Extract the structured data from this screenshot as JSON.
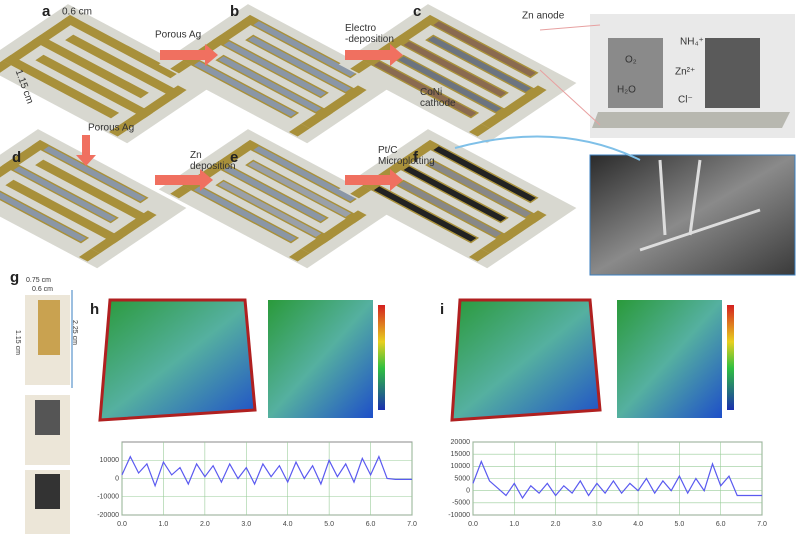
{
  "panels": {
    "a": "a",
    "b": "b",
    "c": "c",
    "d": "d",
    "e": "e",
    "f": "f",
    "g": "g",
    "h": "h",
    "i": "i"
  },
  "labels": {
    "width_a": "0.6 cm",
    "length_a": "1.15 cm",
    "step_ab": "Porous Ag",
    "step_bc": "Electro\n-deposition",
    "zn_anode": "Zn anode",
    "coni_cathode": "CoNi\ncathode",
    "nh4": "NH₄⁺",
    "o2": "O₂",
    "zn2": "Zn²⁺",
    "h2o": "H₂O",
    "cl": "Cl⁻",
    "step_ad": "Porous Ag",
    "step_de": "Zn\ndeposition",
    "step_ef": "Pt/C\nMicroplotting",
    "g_width_outer": "0.75 cm",
    "g_width_inner": "0.6 cm",
    "g_length_inner": "1.15 cm",
    "g_length_outer": "2.25 cm"
  },
  "profiles": [
    {
      "color": "#5a5af0",
      "xlim": [
        0,
        7
      ],
      "ylim": [
        -20000,
        20000
      ],
      "xticks": [
        {
          "value": 0,
          "label": "0.0"
        },
        {
          "value": 1,
          "label": "1.0"
        },
        {
          "value": 2,
          "label": "2.0"
        },
        {
          "value": 3,
          "label": "3.0"
        },
        {
          "value": 4,
          "label": "4.0"
        },
        {
          "value": 5,
          "label": "5.0"
        },
        {
          "value": 6,
          "label": "6.0"
        },
        {
          "value": 7,
          "label": "7.0"
        }
      ],
      "yticks": [
        -20000,
        -10000,
        0,
        10000
      ],
      "x": [
        0,
        0.2,
        0.4,
        0.6,
        0.8,
        1,
        1.2,
        1.4,
        1.6,
        1.8,
        2,
        2.2,
        2.4,
        2.6,
        2.8,
        3,
        3.2,
        3.4,
        3.6,
        3.8,
        4,
        4.2,
        4.4,
        4.6,
        4.8,
        5,
        5.2,
        5.4,
        5.6,
        5.8,
        6,
        6.2,
        6.4,
        6.6,
        6.8,
        7
      ],
      "values": [
        2000,
        12000,
        3000,
        8000,
        -4000,
        9000,
        2000,
        6000,
        -3000,
        8000,
        1000,
        7000,
        -2000,
        8000,
        0,
        6000,
        -3000,
        8000,
        1000,
        7000,
        -2000,
        9000,
        0,
        7000,
        -3000,
        10000,
        1000,
        8000,
        -2000,
        11000,
        2000,
        12000,
        0,
        -500,
        -500,
        -500
      ]
    },
    {
      "color": "#5a5af0",
      "xlim": [
        0,
        7
      ],
      "ylim": [
        -10000,
        20000
      ],
      "xticks": [
        {
          "value": 0,
          "label": "0.0"
        },
        {
          "value": 1,
          "label": "1.0"
        },
        {
          "value": 2,
          "label": "2.0"
        },
        {
          "value": 3,
          "label": "3.0"
        },
        {
          "value": 4,
          "label": "4.0"
        },
        {
          "value": 5,
          "label": "5.0"
        },
        {
          "value": 6,
          "label": "6.0"
        },
        {
          "value": 7,
          "label": "7.0"
        }
      ],
      "yticks": [
        -10000,
        -5000,
        0,
        5000,
        10000,
        15000,
        20000
      ],
      "x": [
        0,
        0.2,
        0.4,
        0.6,
        0.8,
        1,
        1.2,
        1.4,
        1.6,
        1.8,
        2,
        2.2,
        2.4,
        2.6,
        2.8,
        3,
        3.2,
        3.4,
        3.6,
        3.8,
        4,
        4.2,
        4.4,
        4.6,
        4.8,
        5,
        5.2,
        5.4,
        5.6,
        5.8,
        6,
        6.2,
        6.4,
        6.6,
        6.8,
        7
      ],
      "values": [
        3000,
        12000,
        4000,
        1000,
        -2000,
        3000,
        -3000,
        2000,
        -1000,
        3000,
        -2000,
        2000,
        -1000,
        4000,
        -2000,
        3000,
        -1000,
        4000,
        -1000,
        3000,
        0,
        5000,
        -1000,
        4000,
        0,
        6000,
        -1000,
        5000,
        0,
        11000,
        2000,
        6000,
        -2000,
        -2000,
        -2000,
        -2000
      ]
    }
  ]
}
